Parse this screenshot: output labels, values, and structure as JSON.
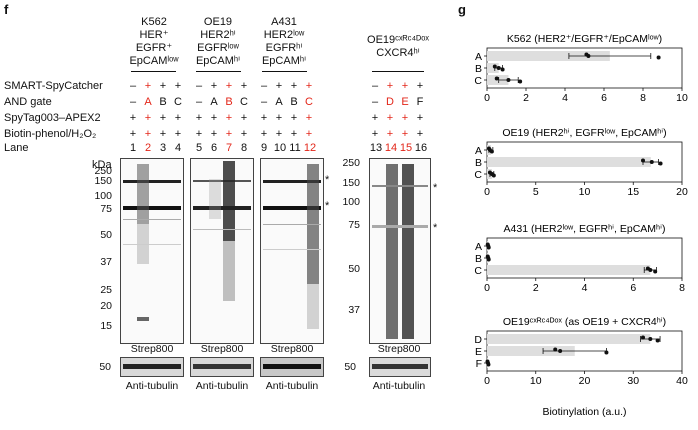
{
  "panel_f": {
    "letter": "f",
    "groups": [
      {
        "lines": [
          "K562",
          "HER⁺",
          "EGFR⁺",
          "EpCAMˡᵒʷ"
        ]
      },
      {
        "lines": [
          "OE19",
          "HER2ʰⁱ",
          "EGFRˡᵒʷ",
          "EpCAMʰⁱ"
        ]
      },
      {
        "lines": [
          "A431",
          "HER2ˡᵒʷ",
          "EGFRʰⁱ",
          "EpCAMʰⁱ"
        ]
      },
      {
        "lines": [
          "OE19ᶜˣᴿᶜ⁴ᴰᵒˣ",
          "CXCR4ʰⁱ"
        ]
      }
    ],
    "row_labels": [
      "SMART-SpyCatcher",
      "AND gate",
      "SpyTag003–APEX2",
      "Biotin-phenol/H₂O₂",
      "Lane"
    ],
    "smart_row": [
      "–",
      "+",
      "+",
      "+",
      "–",
      "+",
      "+",
      "+",
      "–",
      "+",
      "+",
      "+",
      "–",
      "+",
      "+",
      "+"
    ],
    "and_gate_row": [
      "–",
      "A",
      "B",
      "C",
      "–",
      "A",
      "B",
      "C",
      "–",
      "A",
      "B",
      "C",
      "–",
      "D",
      "E",
      "F"
    ],
    "spytag_row": [
      "+",
      "+",
      "+",
      "+",
      "+",
      "+",
      "+",
      "+",
      "+",
      "+",
      "+",
      "+",
      "+",
      "+",
      "+",
      "+"
    ],
    "biotin_row": [
      "+",
      "+",
      "+",
      "+",
      "+",
      "+",
      "+",
      "+",
      "+",
      "+",
      "+",
      "+",
      "+",
      "+",
      "+",
      "+"
    ],
    "lanes": [
      "1",
      "2",
      "3",
      "4",
      "5",
      "6",
      "7",
      "8",
      "9",
      "10",
      "11",
      "12",
      "13",
      "14",
      "15",
      "16"
    ],
    "red_lanes": [
      2,
      7,
      12,
      14,
      15
    ],
    "kda_label": "kDa",
    "mw_markers_left": [
      "250",
      "150",
      "100",
      "75",
      "50",
      "37",
      "25",
      "20",
      "15"
    ],
    "mw_markers_right": [
      "250",
      "150",
      "100",
      "75",
      "50",
      "37"
    ],
    "tubulin_marker": "50",
    "strep_label": "Strep800",
    "tubulin_label": "Anti-tubulin",
    "star": "*"
  },
  "panel_g": {
    "letter": "g",
    "xlabel": "Biotinylation (a.u.)",
    "colors": {
      "bar": "#dedede",
      "point": "#111111"
    },
    "chart_data": [
      {
        "type": "bar",
        "title": "K562 (HER2⁺/EGFR⁺/EpCAMˡᵒʷ)",
        "categories": [
          "A",
          "B",
          "C"
        ],
        "values": [
          6.3,
          0.6,
          1.1
        ],
        "errors": [
          2.1,
          0.2,
          0.5
        ],
        "points": [
          [
            5.1,
            5.2,
            8.8
          ],
          [
            0.4,
            0.6,
            0.8
          ],
          [
            0.5,
            1.1,
            1.7
          ]
        ],
        "xlim": [
          0,
          10
        ],
        "ticks": [
          "0",
          "2",
          "4",
          "6",
          "8",
          "10"
        ]
      },
      {
        "type": "bar",
        "title": "OE19 (HER2ʰⁱ, EGFRˡᵒʷ, EpCAMʰⁱ)",
        "categories": [
          "A",
          "B",
          "C"
        ],
        "values": [
          0.4,
          16.8,
          0.5
        ],
        "errors": [
          0.2,
          0.8,
          0.2
        ],
        "points": [
          [
            0.2,
            0.3,
            0.5
          ],
          [
            16.0,
            16.9,
            17.8
          ],
          [
            0.3,
            0.5,
            0.7
          ]
        ],
        "xlim": [
          0,
          20
        ],
        "ticks": [
          "0",
          "5",
          "10",
          "15",
          "20"
        ]
      },
      {
        "type": "bar",
        "title": "A431 (HER2ˡᵒʷ, EGFRʰⁱ, EpCAMʰⁱ)",
        "categories": [
          "A",
          "B",
          "C"
        ],
        "values": [
          0.05,
          0.05,
          6.7
        ],
        "errors": [
          0.02,
          0.02,
          0.25
        ],
        "points": [
          [
            0.03,
            0.05,
            0.07
          ],
          [
            0.03,
            0.05,
            0.07
          ],
          [
            6.6,
            6.7,
            6.9
          ]
        ],
        "xlim": [
          0,
          8
        ],
        "ticks": [
          "0",
          "2",
          "4",
          "6",
          "8"
        ]
      },
      {
        "type": "bar",
        "title": "OE19ᶜˣᴿᶜ⁴ᴰᵒˣ (as OE19 + CXCR4ʰⁱ)",
        "categories": [
          "D",
          "E",
          "F"
        ],
        "values": [
          33.5,
          18.0,
          0.2
        ],
        "errors": [
          2.0,
          6.5,
          0.1
        ],
        "points": [
          [
            32.0,
            33.5,
            35.0
          ],
          [
            14.0,
            15.0,
            24.5
          ],
          [
            0.1,
            0.2,
            0.3
          ]
        ],
        "xlim": [
          0,
          40
        ],
        "ticks": [
          "0",
          "10",
          "20",
          "30",
          "40"
        ]
      }
    ]
  }
}
